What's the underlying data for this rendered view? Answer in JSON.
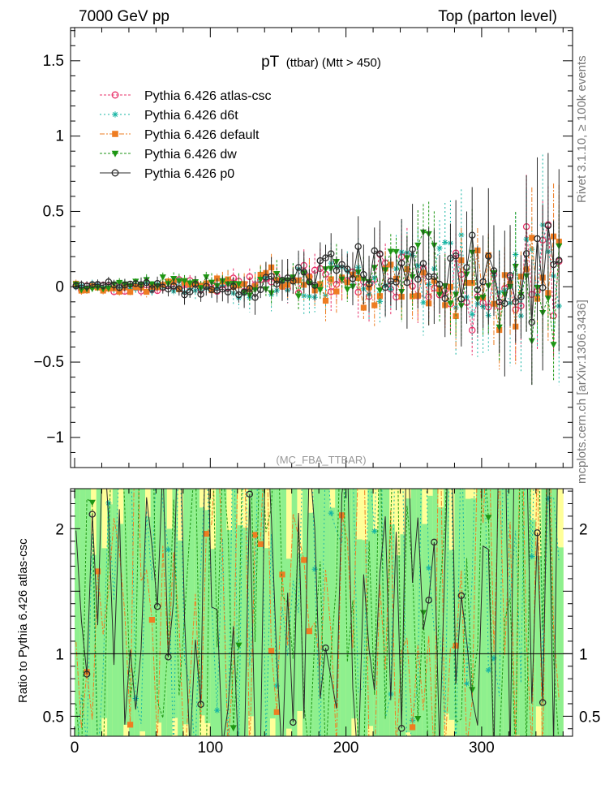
{
  "header": {
    "left": "7000 GeV pp",
    "right": "Top (parton level)"
  },
  "side_labels": {
    "rivet": "Rivet 3.1.10, ≥ 100k events",
    "mcplots": "mcplots.cern.ch [arXiv:1306.3436]"
  },
  "chart_data": [
    {
      "type": "line",
      "panel": "main",
      "title_main": "pT",
      "title_sub": "(ttbar) (Mtt > 450)",
      "watermark": "(MC_FBA_TTBAR)",
      "xlim": [
        -3,
        367
      ],
      "ylim": [
        -1.2,
        1.72
      ],
      "yticks": [
        -1,
        -0.5,
        0,
        0.5,
        1,
        1.5
      ],
      "ytick_labels": [
        "−1",
        "−0.5",
        "0",
        "0.5",
        "1",
        "1.5"
      ],
      "legend_position": "top-left",
      "series": [
        {
          "name": "Pythia 6.426 atlas-csc",
          "color": "#e8336b",
          "marker": "open-circle",
          "dash": "3,2",
          "key_x": [
            0,
            40,
            80,
            120,
            160,
            200,
            240,
            260,
            280,
            300,
            320,
            340,
            360
          ],
          "key_y": [
            0,
            -0.02,
            0.02,
            0,
            0.05,
            0.05,
            0.08,
            0.1,
            0.05,
            -0.2,
            0.1,
            0.15,
            0.05
          ],
          "spread": 0.3,
          "err": 0.1
        },
        {
          "name": "Pythia 6.426 d6t",
          "color": "#16b4a3",
          "marker": "asterisk",
          "dash": "2,3",
          "key_x": [
            0,
            40,
            80,
            120,
            160,
            200,
            240,
            260,
            280,
            300,
            320,
            340,
            360
          ],
          "key_y": [
            0,
            -0.01,
            0.01,
            -0.02,
            0.06,
            0.02,
            0.1,
            0.05,
            0.12,
            -0.05,
            0.05,
            0.1,
            -0.15
          ],
          "spread": 0.35,
          "err": 0.12
        },
        {
          "name": "Pythia 6.426 default",
          "color": "#ee7d22",
          "marker": "filled-square",
          "dash": "6,2,2,2",
          "key_x": [
            0,
            40,
            80,
            120,
            160,
            200,
            240,
            260,
            280,
            300,
            320,
            340,
            360
          ],
          "key_y": [
            0,
            -0.03,
            0.02,
            0.02,
            0.08,
            -0.03,
            0.05,
            0.02,
            -0.05,
            0.05,
            -0.1,
            0.15,
            0.2
          ],
          "spread": 0.3,
          "err": 0.1
        },
        {
          "name": "Pythia 6.426 dw",
          "color": "#1e9614",
          "marker": "filled-triangle-down",
          "dash": "3,2",
          "key_x": [
            0,
            40,
            80,
            120,
            160,
            200,
            240,
            260,
            280,
            300,
            320,
            340,
            360
          ],
          "key_y": [
            0,
            0.02,
            0.05,
            0,
            0.02,
            0.08,
            0.12,
            0.2,
            0.05,
            0,
            -0.15,
            -0.1,
            -0.05
          ],
          "spread": 0.3,
          "err": 0.1
        },
        {
          "name": "Pythia 6.426 p0",
          "color": "#2b2b2b",
          "marker": "open-circle",
          "dash": "",
          "key_x": [
            0,
            40,
            80,
            120,
            160,
            200,
            240,
            260,
            280,
            300,
            320,
            340,
            360
          ],
          "key_y": [
            0,
            0.02,
            -0.02,
            -0.03,
            0.05,
            0.15,
            0.12,
            0.05,
            0.1,
            0.2,
            -0.1,
            0.05,
            0.38
          ],
          "spread": 0.3,
          "err": 0.14
        }
      ]
    },
    {
      "type": "line",
      "panel": "ratio",
      "ylabel": "Ratio to Pythia 6.426 atlas-csc",
      "xlim": [
        -3,
        367
      ],
      "ylim": [
        0.34,
        2.32
      ],
      "yticks": [
        0.5,
        1,
        1.5,
        2
      ],
      "ytick_labels": [
        "0.5",
        "1",
        "",
        "2"
      ],
      "xticks": [
        0,
        100,
        200,
        300
      ],
      "xtick_labels": [
        "0",
        "100",
        "200",
        "300"
      ],
      "reference_line": 1,
      "band_colors": {
        "yellow": "#ffff99",
        "green": "#8ef08e"
      }
    }
  ]
}
